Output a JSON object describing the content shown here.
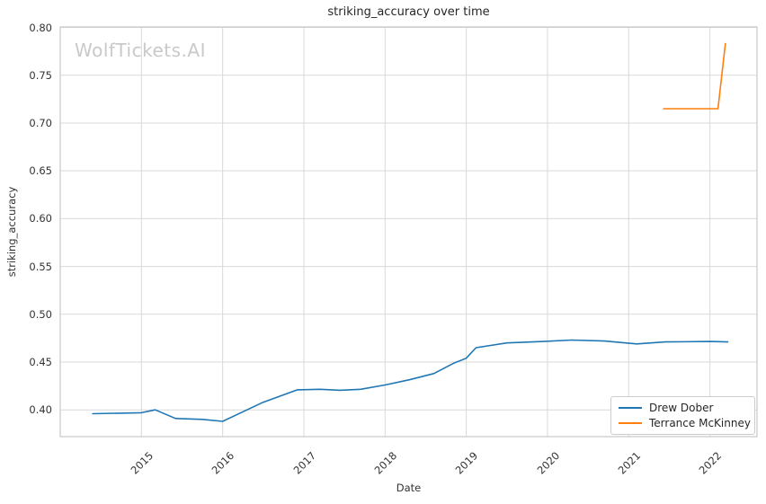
{
  "watermark": "WolfTickets.AI",
  "chart_data": {
    "type": "line",
    "title": "striking_accuracy over time",
    "xlabel": "Date",
    "ylabel": "striking_accuracy",
    "grid": true,
    "legend_position": "lower right",
    "x_ticks": [
      2015,
      2016,
      2017,
      2018,
      2019,
      2020,
      2021,
      2022
    ],
    "y_ticks": [
      0.4,
      0.45,
      0.5,
      0.55,
      0.6,
      0.65,
      0.7,
      0.75,
      0.8
    ],
    "y_tick_labels": [
      "0.40",
      "0.45",
      "0.50",
      "0.55",
      "0.60",
      "0.65",
      "0.70",
      "0.75",
      "0.80"
    ],
    "xlim": [
      2014.0,
      2022.58
    ],
    "ylim": [
      0.372,
      0.8005
    ],
    "grid_color": "#d9d9d9",
    "spine_color": "#c8c8c8",
    "watermark_color": "#c9c9c9",
    "series": [
      {
        "name": "Drew Dober",
        "color": "#1f77b4",
        "x": [
          2014.4,
          2015.0,
          2015.17,
          2015.42,
          2015.75,
          2016.0,
          2016.5,
          2016.92,
          2017.2,
          2017.45,
          2017.7,
          2018.0,
          2018.3,
          2018.6,
          2018.85,
          2019.0,
          2019.12,
          2019.5,
          2019.95,
          2020.3,
          2020.7,
          2021.1,
          2021.45,
          2022.0,
          2022.22
        ],
        "y": [
          0.396,
          0.397,
          0.4,
          0.391,
          0.39,
          0.388,
          0.408,
          0.421,
          0.4215,
          0.4205,
          0.4215,
          0.426,
          0.4315,
          0.438,
          0.449,
          0.454,
          0.465,
          0.47,
          0.4715,
          0.473,
          0.472,
          0.469,
          0.471,
          0.4715,
          0.471
        ]
      },
      {
        "name": "Terrance McKinney",
        "color": "#ff7f0e",
        "x": [
          2021.43,
          2022.1,
          2022.19
        ],
        "y": [
          0.715,
          0.715,
          0.783
        ]
      }
    ]
  }
}
